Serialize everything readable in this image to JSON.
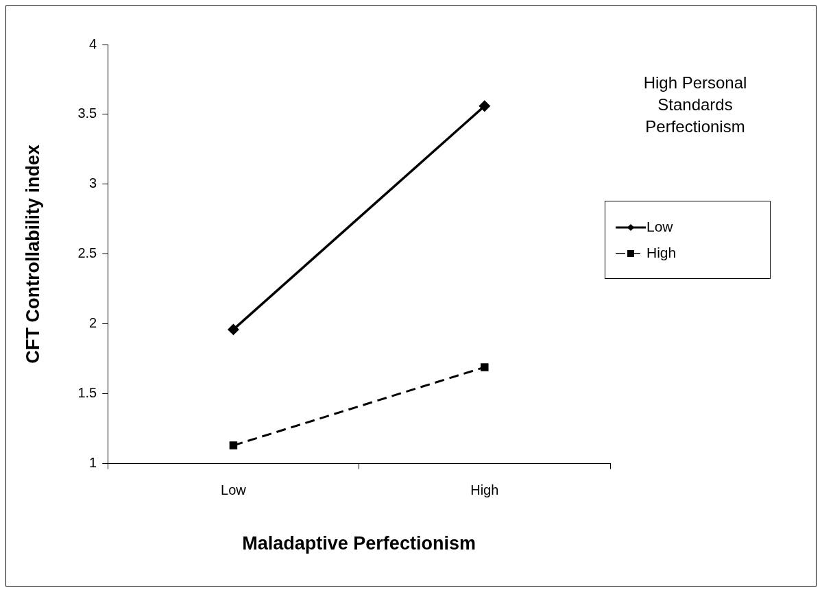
{
  "chart_data": {
    "type": "line",
    "xlabel": "Maladaptive Perfectionism",
    "ylabel": "CFT Controllability index",
    "legend_title": "High Personal Standards Perfectionism",
    "categories": [
      "Low",
      "High"
    ],
    "series": [
      {
        "name": "Low",
        "color": "#000000",
        "values": [
          1.96,
          3.56
        ],
        "marker": "diamond",
        "line_style": "solid"
      },
      {
        "name": "High",
        "color": "#000000",
        "values": [
          1.13,
          1.69
        ],
        "marker": "square",
        "line_style": "dashed"
      }
    ],
    "ylim": [
      1,
      4
    ],
    "yticks": [
      1,
      1.5,
      2,
      2.5,
      3,
      3.5,
      4
    ],
    "grid": false,
    "legend": "right"
  }
}
